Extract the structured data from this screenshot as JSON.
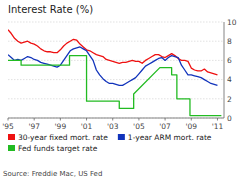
{
  "chart_data": {
    "type": "line",
    "title": "Interest Rate (%)",
    "annotations": [
      "Source: Freddie Mac, US Fed"
    ],
    "xlim": [
      1995,
      2011.5
    ],
    "ylim": [
      0,
      10
    ],
    "yticks": [
      0,
      2,
      4,
      6,
      8,
      10
    ],
    "xticks": [
      {
        "value": 1995,
        "label": "'95"
      },
      {
        "value": 1997,
        "label": "'97"
      },
      {
        "value": 1999,
        "label": "'99"
      },
      {
        "value": 2001,
        "label": "'01"
      },
      {
        "value": 2003,
        "label": "'03"
      },
      {
        "value": 2005,
        "label": "'05"
      },
      {
        "value": 2007,
        "label": "'07"
      },
      {
        "value": 2009,
        "label": "'09"
      },
      {
        "value": 2011,
        "label": "'11"
      }
    ],
    "grid": true,
    "legend": "bottom",
    "series": [
      {
        "name": "30-year fixed mort. rate",
        "color": "#ee1111",
        "x": [
          1995.0,
          1995.25,
          1995.5,
          1995.75,
          1996.0,
          1996.25,
          1996.5,
          1996.75,
          1997.0,
          1997.25,
          1997.5,
          1997.75,
          1998.0,
          1998.25,
          1998.5,
          1998.75,
          1999.0,
          1999.25,
          1999.5,
          1999.75,
          2000.0,
          2000.25,
          2000.5,
          2000.75,
          2001.0,
          2001.25,
          2001.5,
          2001.75,
          2002.0,
          2002.25,
          2002.5,
          2002.75,
          2003.0,
          2003.25,
          2003.5,
          2003.75,
          2004.0,
          2004.25,
          2004.5,
          2004.75,
          2005.0,
          2005.25,
          2005.5,
          2005.75,
          2006.0,
          2006.25,
          2006.5,
          2006.75,
          2007.0,
          2007.25,
          2007.5,
          2007.75,
          2008.0,
          2008.25,
          2008.5,
          2008.75,
          2009.0,
          2009.25,
          2009.5,
          2009.75,
          2010.0,
          2010.25,
          2010.5,
          2010.75,
          2011.0
        ],
        "values": [
          9.2,
          8.8,
          8.3,
          8.0,
          7.8,
          7.9,
          8.0,
          7.8,
          7.7,
          7.5,
          7.2,
          7.0,
          6.9,
          6.9,
          6.8,
          6.8,
          7.1,
          7.5,
          7.8,
          8.0,
          8.2,
          8.1,
          7.7,
          7.4,
          7.1,
          7.0,
          6.8,
          6.6,
          6.5,
          6.4,
          6.1,
          6.0,
          5.9,
          5.8,
          5.7,
          5.8,
          5.8,
          5.9,
          6.0,
          5.9,
          5.9,
          5.7,
          6.0,
          6.2,
          6.4,
          6.6,
          6.6,
          6.4,
          6.3,
          6.5,
          6.7,
          6.5,
          6.2,
          6.0,
          6.0,
          5.9,
          5.2,
          5.0,
          4.9,
          4.9,
          5.1,
          4.8,
          4.7,
          4.6,
          4.5
        ]
      },
      {
        "name": "1-year ARM mort. rate",
        "color": "#1133bb",
        "x": [
          1995.0,
          1995.25,
          1995.5,
          1995.75,
          1996.0,
          1996.25,
          1996.5,
          1996.75,
          1997.0,
          1997.25,
          1997.5,
          1997.75,
          1998.0,
          1998.25,
          1998.5,
          1998.75,
          1999.0,
          1999.25,
          1999.5,
          1999.75,
          2000.0,
          2000.25,
          2000.5,
          2000.75,
          2001.0,
          2001.25,
          2001.5,
          2001.75,
          2002.0,
          2002.25,
          2002.5,
          2002.75,
          2003.0,
          2003.25,
          2003.5,
          2003.75,
          2004.0,
          2004.25,
          2004.5,
          2004.75,
          2005.0,
          2005.25,
          2005.5,
          2005.75,
          2006.0,
          2006.25,
          2006.5,
          2006.75,
          2007.0,
          2007.25,
          2007.5,
          2007.75,
          2008.0,
          2008.25,
          2008.5,
          2008.75,
          2009.0,
          2009.25,
          2009.5,
          2009.75,
          2010.0,
          2010.25,
          2010.5,
          2010.75,
          2011.0
        ],
        "values": [
          6.6,
          6.3,
          6.0,
          6.1,
          6.0,
          6.2,
          6.4,
          6.3,
          6.1,
          6.0,
          5.8,
          5.7,
          5.6,
          5.5,
          5.4,
          5.3,
          5.5,
          6.0,
          6.5,
          7.0,
          7.2,
          7.3,
          7.4,
          7.2,
          7.0,
          6.5,
          6.0,
          5.0,
          4.5,
          4.1,
          3.8,
          3.6,
          3.6,
          3.5,
          3.4,
          3.4,
          3.6,
          3.8,
          4.0,
          4.2,
          4.6,
          5.0,
          5.4,
          5.6,
          5.8,
          6.0,
          6.2,
          6.3,
          6.0,
          6.3,
          6.5,
          6.4,
          6.3,
          5.5,
          5.0,
          4.5,
          4.5,
          4.4,
          4.3,
          4.2,
          4.0,
          3.8,
          3.6,
          3.5,
          3.4
        ]
      },
      {
        "name": "Fed funds target rate",
        "color": "#22bb22",
        "x": [
          1995.0,
          1996.0,
          1996.0,
          1998.5,
          1998.5,
          1999.7,
          1999.7,
          2000.8,
          2000.8,
          2001.0,
          2001.0,
          2003.5,
          2003.5,
          2004.6,
          2004.6,
          2006.6,
          2006.6,
          2007.5,
          2007.5,
          2007.9,
          2007.9,
          2008.9,
          2008.9,
          2011.3
        ],
        "values": [
          6.0,
          6.0,
          5.5,
          5.5,
          5.5,
          5.5,
          6.5,
          6.5,
          6.5,
          6.5,
          1.75,
          1.75,
          1.0,
          1.0,
          2.5,
          5.25,
          5.25,
          5.25,
          4.5,
          4.5,
          2.0,
          2.0,
          0.25,
          0.25
        ]
      }
    ]
  }
}
